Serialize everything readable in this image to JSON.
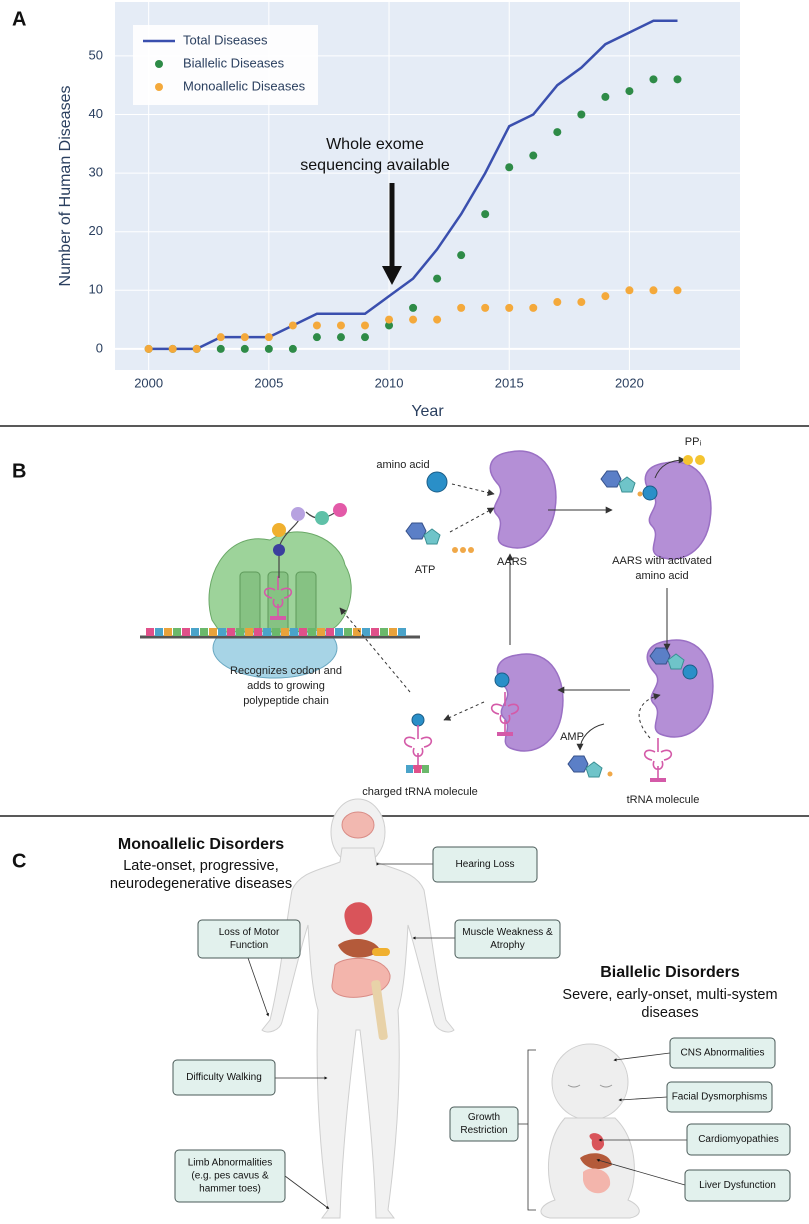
{
  "panel_labels": [
    "A",
    "B",
    "C"
  ],
  "chart_data": {
    "type": "line",
    "xlabel": "Year",
    "ylabel": "Number of Human Diseases",
    "x": [
      2000,
      2001,
      2002,
      2003,
      2004,
      2005,
      2006,
      2007,
      2008,
      2009,
      2010,
      2011,
      2012,
      2013,
      2014,
      2015,
      2016,
      2017,
      2018,
      2019,
      2020,
      2021,
      2022
    ],
    "series": [
      {
        "name": "Total Diseases",
        "color": "#3a4fae",
        "style": "line",
        "values": [
          0,
          0,
          0,
          2,
          2,
          2,
          4,
          6,
          6,
          6,
          9,
          12,
          17,
          23,
          30,
          38,
          40,
          45,
          48,
          52,
          54,
          56,
          56
        ]
      },
      {
        "name": "Biallelic Diseases",
        "color": "#2e8b47",
        "style": "markers",
        "values": [
          0,
          0,
          0,
          0,
          0,
          0,
          0,
          2,
          2,
          2,
          4,
          7,
          12,
          16,
          23,
          31,
          33,
          37,
          40,
          43,
          44,
          46,
          46
        ]
      },
      {
        "name": "Monoallelic Diseases",
        "color": "#f4a93b",
        "style": "markers",
        "values": [
          0,
          0,
          0,
          2,
          2,
          2,
          4,
          4,
          4,
          4,
          5,
          5,
          5,
          7,
          7,
          7,
          7,
          8,
          8,
          9,
          10,
          10,
          10
        ]
      }
    ],
    "xlim": [
      1998.6,
      2024.6
    ],
    "xticks": [
      2000,
      2005,
      2010,
      2015,
      2020
    ],
    "ylim": [
      -3.6,
      59.2
    ],
    "yticks": [
      0,
      10,
      20,
      30,
      40,
      50
    ],
    "grid": true,
    "legend": "upper left",
    "annotation": [
      "Whole exome",
      "sequencing available"
    ]
  },
  "panel_b": {
    "amino_acid": "amino acid",
    "atp": "ATP",
    "aars": "AARS",
    "ppi": "PPᵢ",
    "aars_activated": [
      "AARS with activated",
      "amino acid"
    ],
    "recognizes": [
      "Recognizes codon and",
      "adds to growing",
      "polypeptide chain"
    ],
    "charged_trna": "charged tRNA molecule",
    "amp": "AMP",
    "trna": "tRNA molecule"
  },
  "panel_c": {
    "mono_title": "Monoallelic Disorders",
    "mono_subtitle": [
      "Late-onset, progressive,",
      "neurodegenerative diseases"
    ],
    "mono_boxes": [
      [
        "Hearing Loss"
      ],
      [
        "Loss of Motor",
        "Function"
      ],
      [
        "Muscle Weakness &",
        "Atrophy"
      ],
      [
        "Difficulty Walking"
      ],
      [
        "Limb Abnormalities",
        "(e.g. pes cavus &",
        "hammer toes)"
      ]
    ],
    "bi_title": "Biallelic Disorders",
    "bi_subtitle": [
      "Severe, early-onset, multi-system",
      "diseases"
    ],
    "bi_boxes": [
      [
        "CNS Abnormalities"
      ],
      [
        "Facial Dysmorphisms"
      ],
      [
        "Cardiomyopathies"
      ],
      [
        "Liver Dysfunction"
      ],
      [
        "Growth",
        "Restriction"
      ]
    ]
  }
}
